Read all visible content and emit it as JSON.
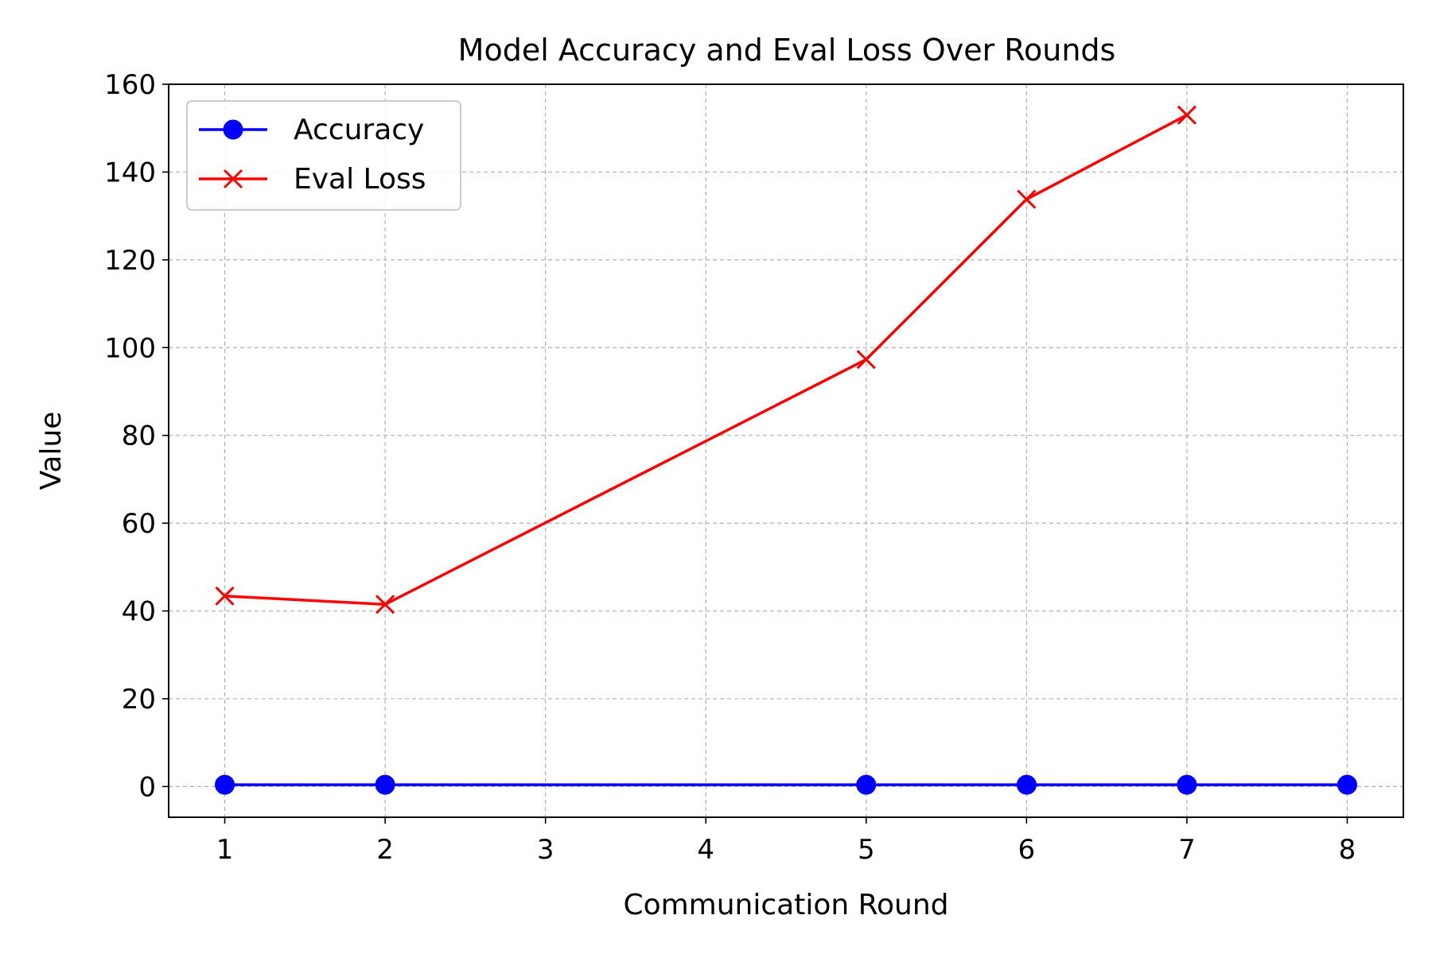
{
  "chart_data": {
    "type": "line",
    "title": "Model Accuracy and Eval Loss Over Rounds",
    "xlabel": "Communication Round",
    "ylabel": "Value",
    "xlim": [
      0.65,
      8.35
    ],
    "ylim": [
      -7,
      160
    ],
    "xticks": [
      1,
      2,
      3,
      4,
      5,
      6,
      7,
      8
    ],
    "yticks": [
      0,
      20,
      40,
      60,
      80,
      100,
      120,
      140,
      160
    ],
    "grid": true,
    "legend_position": "upper-left",
    "series": [
      {
        "name": "Accuracy",
        "color": "#0000ff",
        "marker": "circle",
        "x": [
          1,
          2,
          5,
          6,
          7,
          8
        ],
        "y": [
          0.4,
          0.4,
          0.4,
          0.4,
          0.4,
          0.4
        ]
      },
      {
        "name": "Eval Loss",
        "color": "#ff0000",
        "marker": "x",
        "x": [
          1,
          2,
          5,
          6,
          7
        ],
        "y": [
          43.4,
          41.5,
          97.3,
          133.8,
          153
        ]
      }
    ]
  }
}
